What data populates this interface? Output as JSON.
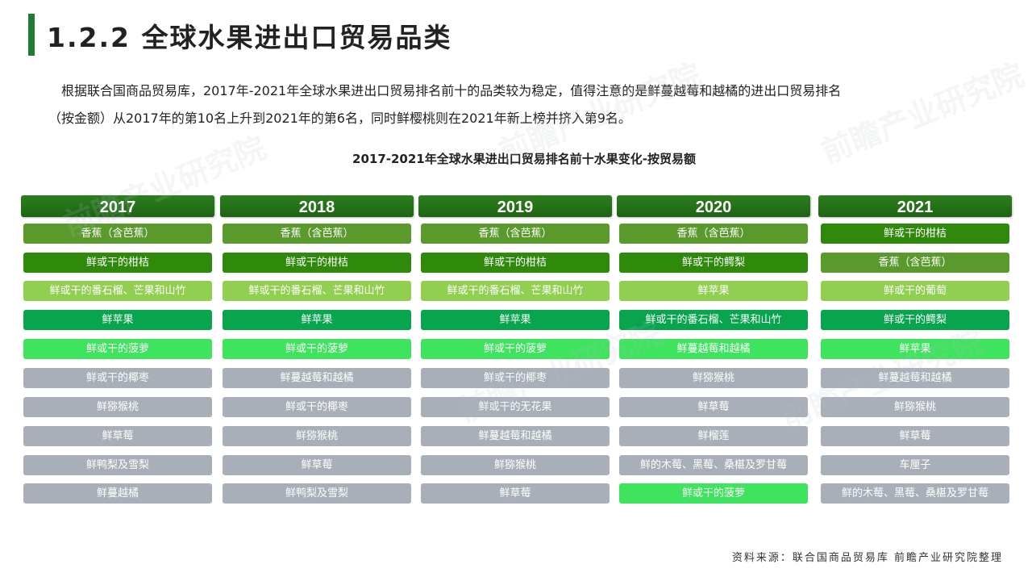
{
  "header": {
    "title": "1.2.2 全球水果进出口贸易品类"
  },
  "intro": {
    "line1": "根据联合国商品贸易库，2017年-2021年全球水果进出口贸易排名前十的品类较为稳定，值得注意的是鲜蔓越莓和越橘的进出口贸易排名",
    "line2": "（按金额）从2017年的第10名上升到2021年的第6名，同时鲜樱桃则在2021年新上榜并挤入第9名。"
  },
  "chart_data": {
    "type": "table",
    "title": "2017-2021年全球水果进出口贸易排名前十水果变化-按贸易额",
    "columns": [
      {
        "year": "2017",
        "items": [
          "香蕉（含芭蕉）",
          "鲜或干的柑桔",
          "鲜或干的番石榴、芒果和山竹",
          "鲜苹果",
          "鲜或干的菠萝",
          "鲜或干的椰枣",
          "鲜猕猴桃",
          "鲜草莓",
          "鲜鸭梨及雪梨",
          "鲜蔓越橘"
        ]
      },
      {
        "year": "2018",
        "items": [
          "香蕉（含芭蕉）",
          "鲜或干的柑桔",
          "鲜或干的番石榴、芒果和山竹",
          "鲜苹果",
          "鲜或干的菠萝",
          "鲜蔓越莓和越橘",
          "鲜或干的椰枣",
          "鲜猕猴桃",
          "鲜草莓",
          "鲜鸭梨及雪梨"
        ]
      },
      {
        "year": "2019",
        "items": [
          "香蕉（含芭蕉）",
          "鲜或干的柑桔",
          "鲜或干的番石榴、芒果和山竹",
          "鲜苹果",
          "鲜或干的菠萝",
          "鲜或干的椰枣",
          "鲜或干的无花果",
          "鲜蔓越莓和越橘",
          "鲜猕猴桃",
          "鲜草莓"
        ]
      },
      {
        "year": "2020",
        "items": [
          "香蕉（含芭蕉）",
          "鲜或干的鳄梨",
          "鲜苹果",
          "鲜或干的番石榴、芒果和山竹",
          "鲜蔓越莓和越橘",
          "鲜猕猴桃",
          "鲜草莓",
          "鲜榴莲",
          "鲜的木莓、黑莓、桑椹及罗甘莓",
          "鲜或干的菠萝"
        ]
      },
      {
        "year": "2021",
        "items": [
          "鲜或干的柑桔",
          "香蕉（含芭蕉）",
          "鲜或干的葡萄",
          "鲜或干的鳄梨",
          "鲜苹果",
          "鲜蔓越莓和越橘",
          "鲜猕猴桃",
          "鲜草莓",
          "车厘子",
          "鲜的木莓、黑莓、桑椹及罗甘莓"
        ]
      }
    ],
    "row_colors": {
      "2017": [
        "#5a9a2c",
        "#2f8a0c",
        "#90cf50",
        "#06a54e",
        "#3ee35e",
        "#a9afb8",
        "#a9afb8",
        "#a9afb8",
        "#a9afb8",
        "#a9afb8"
      ],
      "2018": [
        "#5a9a2c",
        "#2f8a0c",
        "#90cf50",
        "#06a54e",
        "#3ee35e",
        "#a9afb8",
        "#a9afb8",
        "#a9afb8",
        "#a9afb8",
        "#a9afb8"
      ],
      "2019": [
        "#5a9a2c",
        "#2f8a0c",
        "#90cf50",
        "#06a54e",
        "#3ee35e",
        "#a9afb8",
        "#a9afb8",
        "#a9afb8",
        "#a9afb8",
        "#a9afb8"
      ],
      "2020": [
        "#5a9a2c",
        "#2f8a0c",
        "#90cf50",
        "#06a54e",
        "#3ee35e",
        "#a9afb8",
        "#a9afb8",
        "#a9afb8",
        "#a9afb8",
        "#3ee35e"
      ],
      "2021": [
        "#2f8a0c",
        "#5a9a2c",
        "#90cf50",
        "#06a54e",
        "#3ee35e",
        "#a9afb8",
        "#a9afb8",
        "#a9afb8",
        "#a9afb8",
        "#a9afb8"
      ]
    },
    "header_color": "#1e6414"
  },
  "footer": {
    "source": "资料来源：联合国商品贸易库 前瞻产业研究院整理"
  },
  "watermark": {
    "text": "前瞻产业研究院"
  }
}
